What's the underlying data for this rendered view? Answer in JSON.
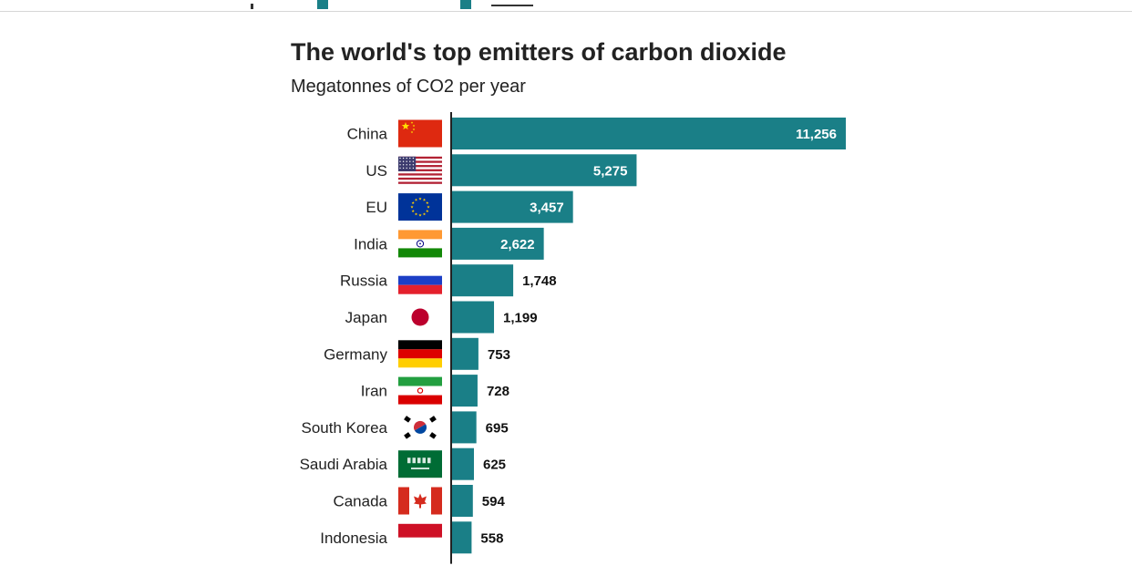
{
  "title": "The world's top emitters of carbon dioxide",
  "subtitle": "Megatonnes of CO2 per year",
  "colors": {
    "bar": "#1a7f87",
    "axis": "#222222",
    "label_inside": "#ffffff",
    "label_outside": "#111111"
  },
  "chart_data": {
    "type": "bar",
    "orientation": "horizontal",
    "title": "The world's top emitters of carbon dioxide",
    "subtitle": "Megatonnes of CO2 per year",
    "categories": [
      "China",
      "US",
      "EU",
      "India",
      "Russia",
      "Japan",
      "Germany",
      "Iran",
      "South Korea",
      "Saudi Arabia",
      "Canada",
      "Indonesia"
    ],
    "values": [
      11256,
      5275,
      3457,
      2622,
      1748,
      1199,
      753,
      728,
      695,
      625,
      594,
      558
    ],
    "value_labels": [
      "11,256",
      "5,275",
      "3,457",
      "2,622",
      "1,748",
      "1,199",
      "753",
      "728",
      "695",
      "625",
      "594",
      "558"
    ],
    "flags": [
      "china-flag-icon",
      "us-flag-icon",
      "eu-flag-icon",
      "india-flag-icon",
      "russia-flag-icon",
      "japan-flag-icon",
      "germany-flag-icon",
      "iran-flag-icon",
      "south-korea-flag-icon",
      "saudi-arabia-flag-icon",
      "canada-flag-icon",
      "indonesia-flag-icon"
    ],
    "xlim": [
      0,
      11256
    ],
    "grid": false,
    "legend": "none"
  }
}
